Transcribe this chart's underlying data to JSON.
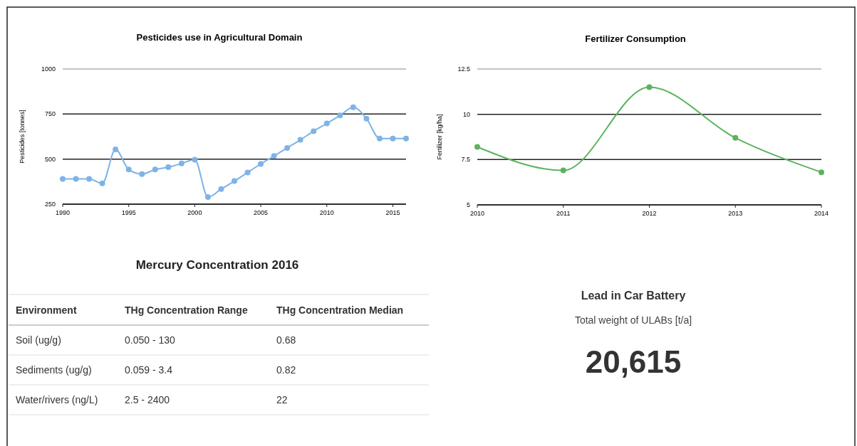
{
  "chart_data": [
    {
      "type": "line",
      "title": "Pesticides use in Agricultural Domain",
      "ylabel": "Pesticides [tonnes]",
      "x": [
        1990,
        1991,
        1992,
        1993,
        1994,
        1995,
        1996,
        1997,
        1998,
        1999,
        2000,
        2001,
        2002,
        2003,
        2004,
        2005,
        2006,
        2007,
        2008,
        2009,
        2010,
        2011,
        2012,
        2013,
        2014,
        2015,
        2016
      ],
      "series": [
        {
          "color": "#7fb3e6",
          "values": [
            390,
            390,
            390,
            365,
            554,
            442,
            417,
            442,
            455,
            476,
            497,
            289,
            334,
            378,
            426,
            473,
            517,
            562,
            607,
            655,
            698,
            742,
            788,
            725,
            614,
            614,
            614
          ]
        }
      ],
      "xlim": [
        1990,
        2016
      ],
      "xticks": [
        1990,
        1995,
        2000,
        2005,
        2010,
        2015
      ],
      "ylim": [
        250,
        1000
      ],
      "yticks": [
        250,
        500,
        750,
        1000
      ],
      "grid": "y",
      "marker": "circle"
    },
    {
      "type": "line",
      "title": "Fertilizer Consumption",
      "ylabel": "Fertilizer [kg/ha]",
      "x": [
        2010,
        2011,
        2012,
        2013,
        2014
      ],
      "series": [
        {
          "color": "#5cb35e",
          "values": [
            8.2,
            6.9,
            11.5,
            8.7,
            6.8
          ]
        }
      ],
      "xlim": [
        2010,
        2014
      ],
      "xticks": [
        2010,
        2011,
        2012,
        2013,
        2014
      ],
      "ylim": [
        5,
        12.5
      ],
      "yticks": [
        5,
        7.5,
        10,
        12.5
      ],
      "grid": "y",
      "marker": "circle"
    },
    {
      "type": "other",
      "title": "Mercury Concentration 2016",
      "annotations": [
        "Environment",
        "THg Concentration Range",
        "THg Concentration Median",
        "Soil (ug/g)",
        "0.050 - 130",
        "0.68",
        "Sediments (ug/g)",
        "0.059 - 3.4",
        "0.82",
        "Water/rivers (ng/L)",
        "2.5 - 2400",
        "22"
      ]
    },
    {
      "type": "other",
      "title": "Lead in Car Battery",
      "subtitle": "Total weight of ULABs [t/a]",
      "annotations": [
        "20,615"
      ]
    }
  ]
}
